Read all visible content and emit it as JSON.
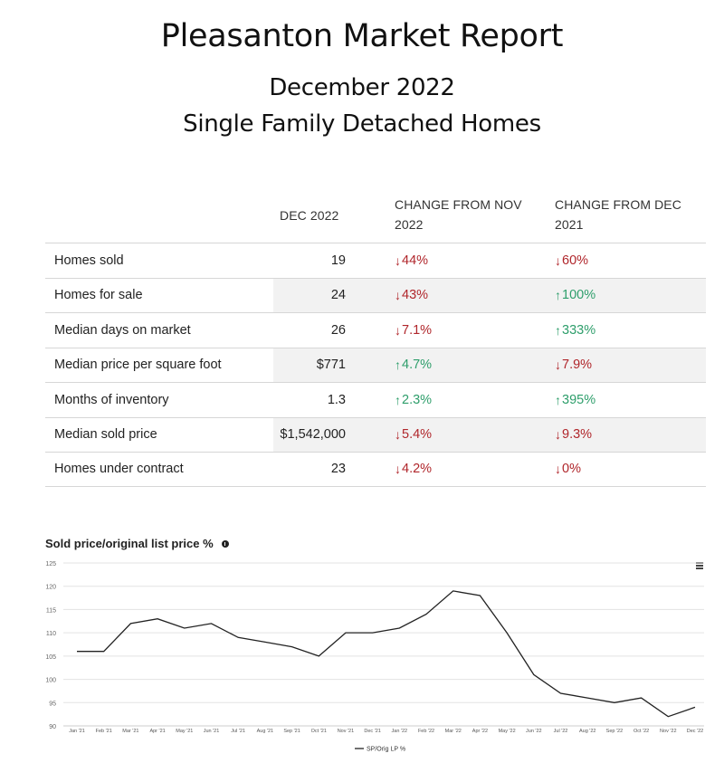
{
  "header": {
    "title": "Pleasanton Market Report",
    "month": "December 2022",
    "category": "Single Family Detached Homes"
  },
  "table": {
    "columns": [
      "DEC 2022",
      "CHANGE FROM NOV 2022",
      "CHANGE FROM DEC 2021"
    ],
    "rows": [
      {
        "label": "Homes sold",
        "value": "19",
        "nov_dir": "down",
        "nov": "44%",
        "yr_dir": "down",
        "yr": "60%"
      },
      {
        "label": "Homes for sale",
        "value": "24",
        "nov_dir": "down",
        "nov": "43%",
        "yr_dir": "up",
        "yr": "100%"
      },
      {
        "label": "Median days on market",
        "value": "26",
        "nov_dir": "down",
        "nov": "7.1%",
        "yr_dir": "up",
        "yr": "333%"
      },
      {
        "label": "Median price per square foot",
        "value": "$771",
        "nov_dir": "up",
        "nov": "4.7%",
        "yr_dir": "down",
        "yr": "7.9%"
      },
      {
        "label": "Months of inventory",
        "value": "1.3",
        "nov_dir": "up",
        "nov": "2.3%",
        "yr_dir": "up",
        "yr": "395%"
      },
      {
        "label": "Median sold price",
        "value": "$1,542,000",
        "nov_dir": "down",
        "nov": "5.4%",
        "yr_dir": "down",
        "yr": "9.3%"
      },
      {
        "label": "Homes under contract",
        "value": "23",
        "nov_dir": "down",
        "nov": "4.2%",
        "yr_dir": "down",
        "yr": "0%"
      }
    ],
    "up_arrow": "↑",
    "down_arrow": "↓",
    "colors": {
      "up": "#2e9e6b",
      "down": "#b0262b"
    }
  },
  "chart": {
    "title": "Sold price/original list price %",
    "info_icon": "info-icon",
    "menu_icon": "hamburger-menu-icon"
  },
  "chart_data": {
    "type": "line",
    "title": "Sold price/original list price %",
    "categories": [
      "Jan '21",
      "Feb '21",
      "Mar '21",
      "Apr '21",
      "May '21",
      "Jun '21",
      "Jul '21",
      "Aug '21",
      "Sep '21",
      "Oct '21",
      "Nov '21",
      "Dec '21",
      "Jan '22",
      "Feb '22",
      "Mar '22",
      "Apr '22",
      "May '22",
      "Jun '22",
      "Jul '22",
      "Aug '22",
      "Sep '22",
      "Oct '22",
      "Nov '22",
      "Dec '22"
    ],
    "series": [
      {
        "name": "SP/Orig LP %",
        "values": [
          106,
          106,
          112,
          113,
          111,
          112,
          109,
          108,
          107,
          105,
          110,
          110,
          111,
          114,
          119,
          118,
          110,
          101,
          97,
          96,
          95,
          96,
          92,
          94
        ]
      }
    ],
    "yticks": [
      90,
      95,
      100,
      105,
      110,
      115,
      120,
      125
    ],
    "ylim": [
      90,
      125
    ],
    "grid": true,
    "legend": "bottom-center",
    "line_color": "#222222"
  }
}
